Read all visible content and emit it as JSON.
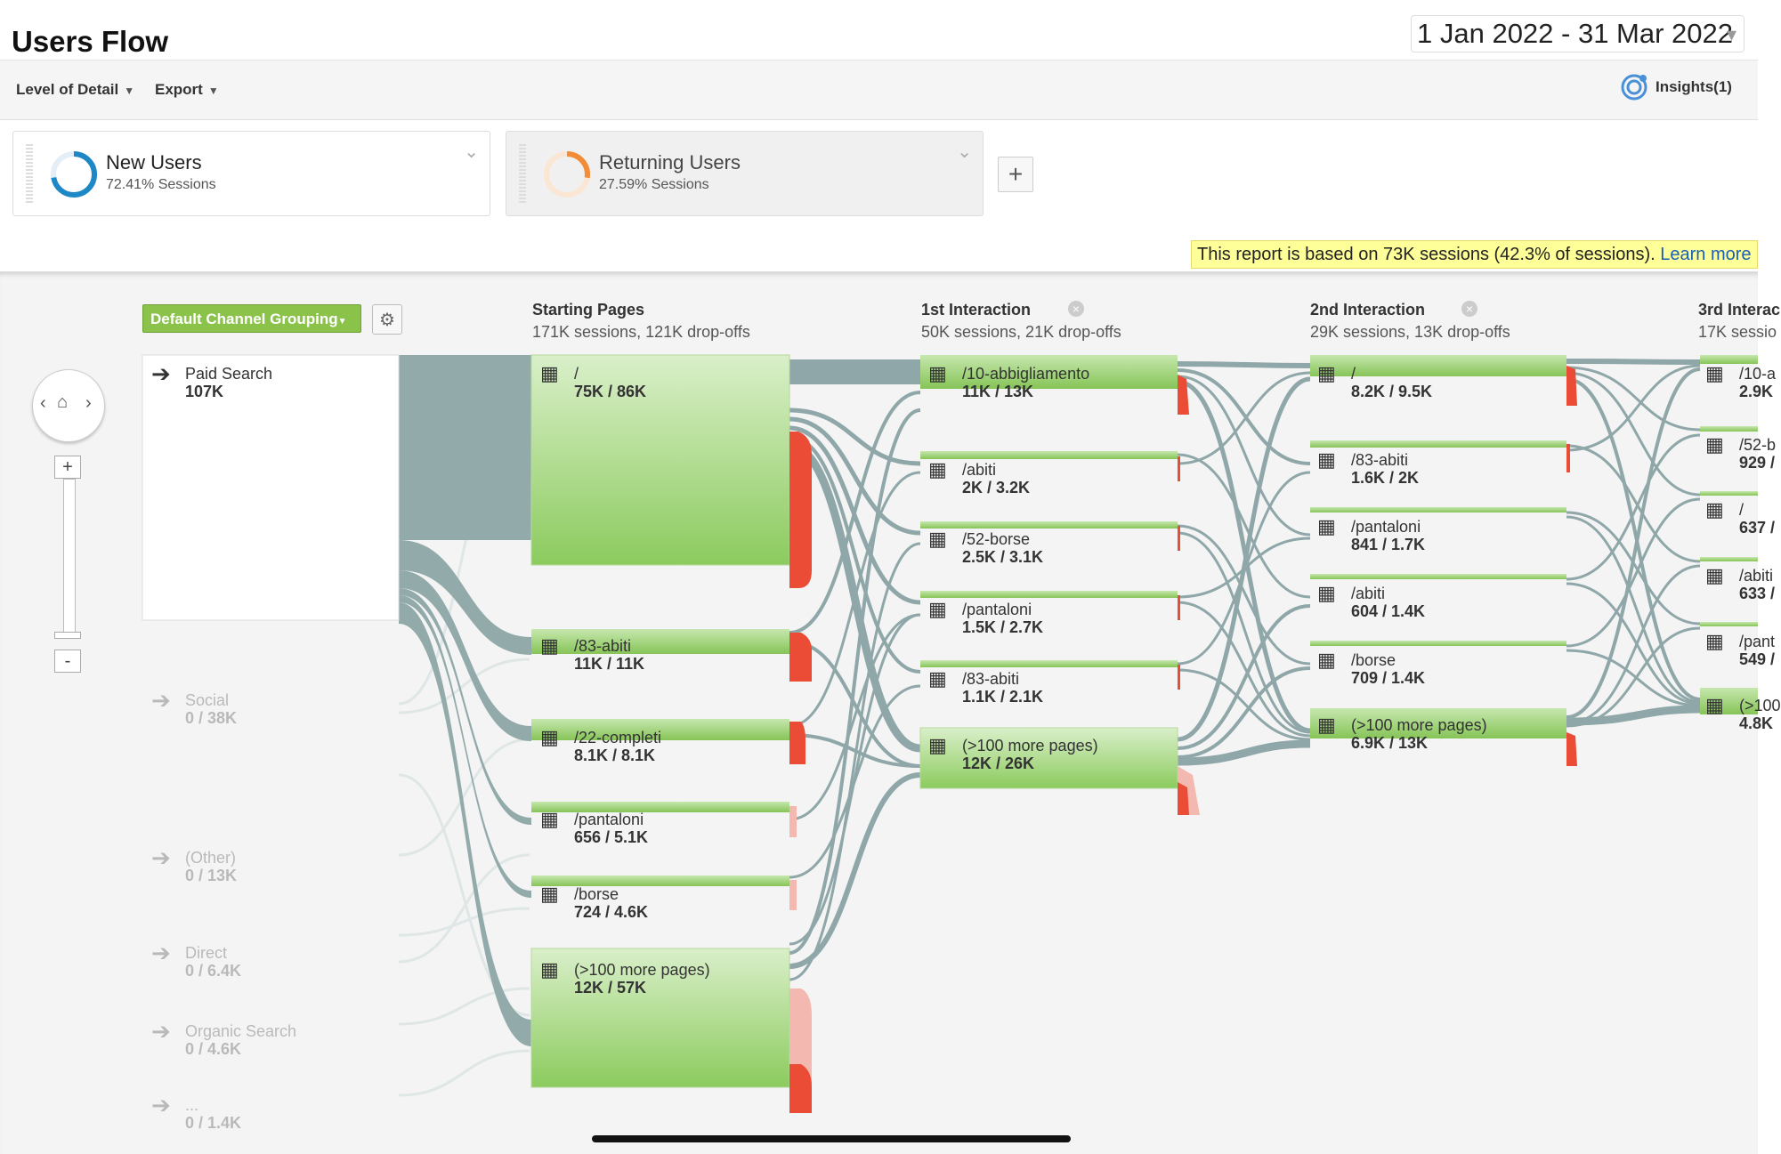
{
  "header": {
    "title": "Users Flow",
    "date_range": "1 Jan 2022 - 31 Mar 2022"
  },
  "toolbar": {
    "level_of_detail": "Level of Detail",
    "export": "Export",
    "insights": "Insights(1)"
  },
  "segments": [
    {
      "name": "New Users",
      "sub": "72.41% Sessions",
      "color": "#1e88c7",
      "fraction": 0.7241
    },
    {
      "name": "Returning Users",
      "sub": "27.59% Sessions",
      "color": "#f28c38",
      "fraction": 0.2759
    }
  ],
  "add_segment": "+",
  "notice": {
    "text": "This report is based on 73K sessions (42.3% of sessions).",
    "link": "Learn more"
  },
  "flow": {
    "grouping_label": "Default Channel Grouping",
    "columns": [
      {
        "title": "Starting Pages",
        "sub": "171K sessions, 121K drop-offs"
      },
      {
        "title": "1st Interaction",
        "sub": "50K sessions, 21K drop-offs"
      },
      {
        "title": "2nd Interaction",
        "sub": "29K sessions, 13K drop-offs"
      },
      {
        "title": "3rd Interac",
        "sub": "17K sessio"
      }
    ],
    "sources": [
      {
        "name": "Paid Search",
        "value": "107K"
      },
      {
        "name": "Social",
        "value": "0 / 38K"
      },
      {
        "name": "(Other)",
        "value": "0 / 13K"
      },
      {
        "name": "Direct",
        "value": "0 / 6.4K"
      },
      {
        "name": "Organic Search",
        "value": "0 / 4.6K"
      },
      {
        "name": "...",
        "value": "0 / 1.4K"
      }
    ],
    "starting_pages": [
      {
        "name": "/",
        "value": "75K / 86K"
      },
      {
        "name": "/83-abiti",
        "value": "11K / 11K"
      },
      {
        "name": "/22-completi",
        "value": "8.1K / 8.1K"
      },
      {
        "name": "/pantaloni",
        "value": "656 / 5.1K"
      },
      {
        "name": "/borse",
        "value": "724 / 4.6K"
      },
      {
        "name": "(>100 more pages)",
        "value": "12K / 57K"
      }
    ],
    "first_interaction": [
      {
        "name": "/10-abbigliamento",
        "value": "11K / 13K"
      },
      {
        "name": "/abiti",
        "value": "2K / 3.2K"
      },
      {
        "name": "/52-borse",
        "value": "2.5K / 3.1K"
      },
      {
        "name": "/pantaloni",
        "value": "1.5K / 2.7K"
      },
      {
        "name": "/83-abiti",
        "value": "1.1K / 2.1K"
      },
      {
        "name": "(>100 more pages)",
        "value": "12K / 26K"
      }
    ],
    "second_interaction": [
      {
        "name": "/",
        "value": "8.2K / 9.5K"
      },
      {
        "name": "/83-abiti",
        "value": "1.6K / 2K"
      },
      {
        "name": "/pantaloni",
        "value": "841 / 1.7K"
      },
      {
        "name": "/abiti",
        "value": "604 / 1.4K"
      },
      {
        "name": "/borse",
        "value": "709 / 1.4K"
      },
      {
        "name": "(>100 more pages)",
        "value": "6.9K / 13K"
      }
    ],
    "third_interaction": [
      {
        "name": "/10-a",
        "value": "2.9K"
      },
      {
        "name": "/52-b",
        "value": "929 /"
      },
      {
        "name": "/",
        "value": "637 /"
      },
      {
        "name": "/abiti",
        "value": "633 /"
      },
      {
        "name": "/pant",
        "value": "549 /"
      },
      {
        "name": "(>100",
        "value": "4.8K"
      }
    ]
  }
}
